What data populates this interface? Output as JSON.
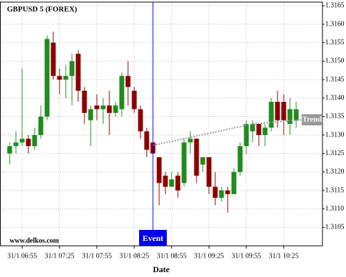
{
  "chart_data": {
    "type": "candlestick",
    "title": "GBPUSD 5 (FOREX)",
    "watermark": "www.delkos.com",
    "x_label": "Date",
    "x": [
      "31/1 06:45",
      "31/1 06:50",
      "31/1 06:55",
      "31/1 07:00",
      "31/1 07:05",
      "31/1 07:10",
      "31/1 07:15",
      "31/1 07:20",
      "31/1 07:25",
      "31/1 07:30",
      "31/1 07:35",
      "31/1 07:40",
      "31/1 07:45",
      "31/1 07:50",
      "31/1 07:55",
      "31/1 08:00",
      "31/1 08:05",
      "31/1 08:10",
      "31/1 08:15",
      "31/1 08:20",
      "31/1 08:25",
      "31/1 08:30",
      "31/1 08:35",
      "31/1 08:40",
      "31/1 08:45",
      "31/1 08:50",
      "31/1 08:55",
      "31/1 09:00",
      "31/1 09:05",
      "31/1 09:10",
      "31/1 09:15",
      "31/1 09:20",
      "31/1 09:25",
      "31/1 09:30",
      "31/1 09:35",
      "31/1 09:40",
      "31/1 09:45",
      "31/1 09:50",
      "31/1 09:55",
      "31/1 10:00",
      "31/1 10:05",
      "31/1 10:10",
      "31/1 10:15",
      "31/1 10:20",
      "31/1 10:25",
      "31/1 10:30",
      "31/1 10:35"
    ],
    "open": [
      1.3125,
      1.3127,
      1.3128,
      1.3129,
      1.3127,
      1.313,
      1.3135,
      1.3155,
      1.3146,
      1.3145,
      1.3146,
      1.3152,
      1.3142,
      1.3134,
      1.3138,
      1.3137,
      1.3138,
      1.3136,
      1.3137,
      1.3146,
      1.3142,
      1.3137,
      1.3131,
      1.3128,
      1.3124,
      1.3119,
      1.3116,
      1.3119,
      1.3117,
      1.3128,
      1.3129,
      1.3122,
      1.3124,
      1.3116,
      1.3113,
      1.3115,
      1.3114,
      1.312,
      1.3127,
      1.3131,
      1.3133,
      1.313,
      1.3132,
      1.3139,
      1.3139,
      1.3133,
      1.3134
    ],
    "high": [
      1.3128,
      1.3131,
      1.3148,
      1.313,
      1.3132,
      1.3138,
      1.3157,
      1.3158,
      1.3148,
      1.3149,
      1.3152,
      1.3153,
      1.3143,
      1.3138,
      1.3141,
      1.314,
      1.3142,
      1.3139,
      1.3147,
      1.315,
      1.3143,
      1.3138,
      1.3132,
      1.3129,
      1.3124,
      1.312,
      1.312,
      1.312,
      1.3129,
      1.3131,
      1.3129,
      1.3124,
      1.3124,
      1.312,
      1.3116,
      1.3116,
      1.3121,
      1.3128,
      1.3134,
      1.3134,
      1.3133,
      1.3133,
      1.314,
      1.3142,
      1.3141,
      1.314,
      1.3139
    ],
    "low": [
      1.3122,
      1.3125,
      1.3127,
      1.3125,
      1.3126,
      1.3129,
      1.3134,
      1.3145,
      1.3141,
      1.314,
      1.3138,
      1.3139,
      1.3133,
      1.3127,
      1.3134,
      1.3133,
      1.313,
      1.3135,
      1.3135,
      1.3138,
      1.3136,
      1.3129,
      1.3124,
      1.3125,
      1.3111,
      1.3114,
      1.3116,
      1.3113,
      1.3116,
      1.3125,
      1.3117,
      1.312,
      1.3114,
      1.3111,
      1.3112,
      1.3109,
      1.3114,
      1.3119,
      1.3125,
      1.3128,
      1.3127,
      1.3127,
      1.3131,
      1.3132,
      1.313,
      1.313,
      1.3132
    ],
    "close": [
      1.3127,
      1.3128,
      1.3129,
      1.3127,
      1.313,
      1.3135,
      1.3156,
      1.3146,
      1.3145,
      1.3146,
      1.315,
      1.3142,
      1.3136,
      1.3137,
      1.3137,
      1.3138,
      1.3136,
      1.3138,
      1.3146,
      1.3143,
      1.3137,
      1.3131,
      1.3126,
      1.3125,
      1.3117,
      1.3116,
      1.3118,
      1.3115,
      1.3128,
      1.3129,
      1.3119,
      1.3124,
      1.3116,
      1.3113,
      1.3115,
      1.3114,
      1.312,
      1.3127,
      1.3133,
      1.3133,
      1.313,
      1.3132,
      1.3139,
      1.3134,
      1.3134,
      1.3137,
      1.3137
    ],
    "up_color": "#1e8c1e",
    "down_color": "#8b0000",
    "xticks": [
      "31/1 06:55",
      "31/1 07:25",
      "31/1 07:55",
      "31/1 08:25",
      "31/1 08:55",
      "31/1 09:25",
      "31/1 09:55",
      "31/1 10:25"
    ],
    "ylim": [
      1.31,
      1.3166
    ],
    "yticks": [
      1.3105,
      {
        "value": 1.311,
        "label": "1.3110"
      },
      1.3115,
      {
        "value": 1.312,
        "label": "1.3120"
      },
      1.3125,
      {
        "value": 1.313,
        "label": "1.3130"
      },
      1.3135,
      {
        "value": 1.314,
        "label": "1.3140"
      },
      1.3145,
      {
        "value": 1.315,
        "label": "1.3150"
      },
      1.3155,
      {
        "value": 1.316,
        "label": "1.3160"
      },
      1.3165
    ],
    "grid": true,
    "event": {
      "label": "Event",
      "x": "31/1 08:40",
      "color": "#0000ee"
    },
    "trend": {
      "label": "Trend",
      "x": [
        "31/1 08:40",
        "31/1 10:00"
      ],
      "y": [
        1.31272,
        1.3133
      ],
      "color": "#999999"
    }
  }
}
